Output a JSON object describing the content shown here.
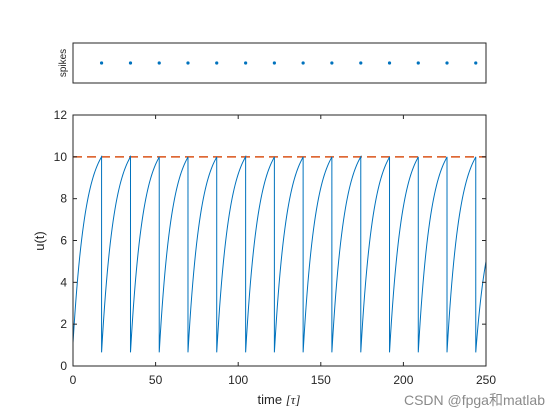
{
  "chart_data": [
    {
      "type": "scatter",
      "ylabel": "spikes",
      "xlim": [
        0,
        250
      ],
      "x": [
        17.3,
        34.8,
        52.2,
        69.6,
        87.0,
        104.5,
        121.9,
        139.3,
        156.7,
        174.2,
        191.6,
        209.0,
        226.4,
        243.8
      ],
      "color": "#0072BD",
      "grid": false
    },
    {
      "type": "line",
      "xlabel_prefix": "time ",
      "xlabel_symbol": "[τ]",
      "ylabel": "u(t)",
      "xlim": [
        0,
        250
      ],
      "ylim": [
        0,
        12
      ],
      "xticks": [
        0,
        50,
        100,
        150,
        200,
        250
      ],
      "yticks": [
        0,
        2,
        4,
        6,
        8,
        10,
        12
      ],
      "grid": false,
      "series": [
        {
          "type": "sawtooth",
          "reset_value": 0.65,
          "peak_value": 10,
          "initial_value": 1.1,
          "final_value": 5.0,
          "spike_times": [
            17.3,
            34.8,
            52.2,
            69.6,
            87.0,
            104.5,
            121.9,
            139.3,
            156.7,
            174.2,
            191.6,
            209.0,
            226.4,
            243.8
          ],
          "color": "#0072BD"
        },
        {
          "type": "threshold",
          "value": 10,
          "style": "dashed",
          "color": "#D95319"
        }
      ]
    }
  ],
  "watermark": "CSDN @fpga和matlab"
}
